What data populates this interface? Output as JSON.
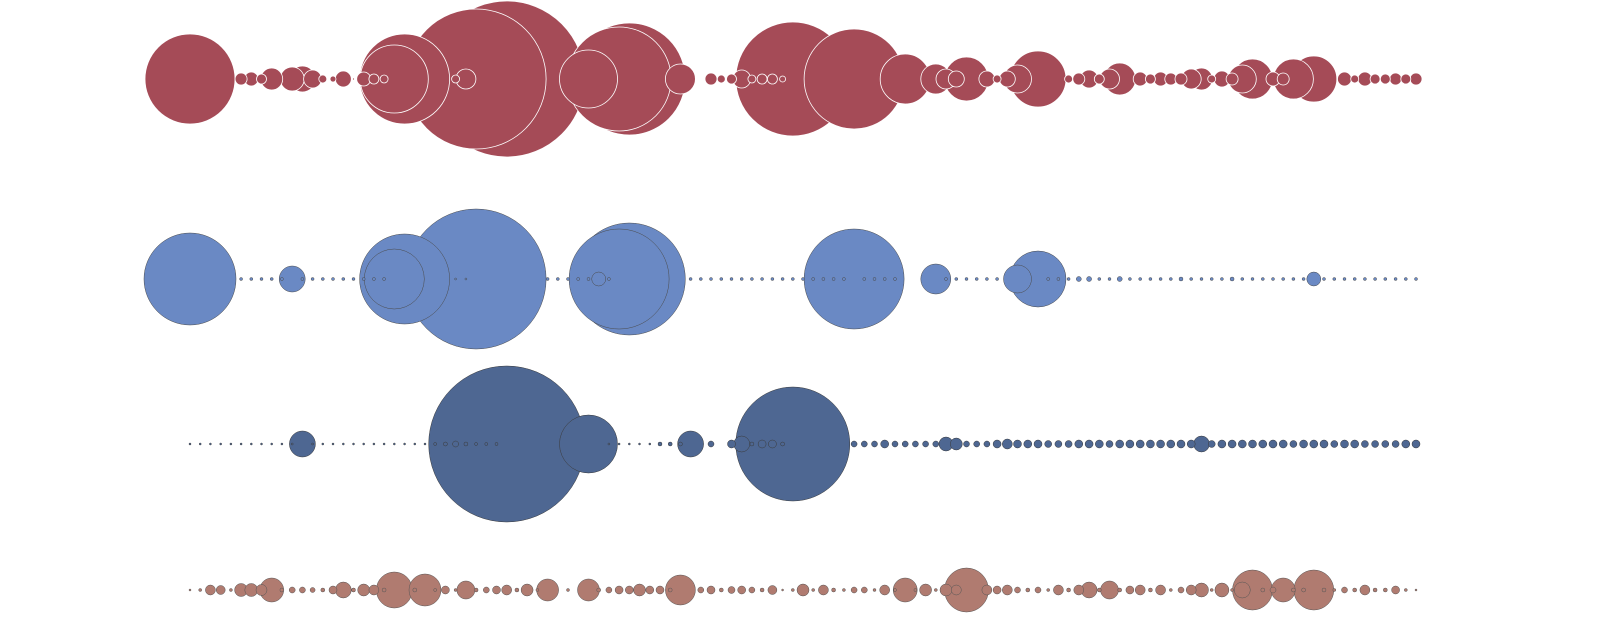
{
  "chart_data": {
    "type": "bubble",
    "title": "",
    "xlabel": "",
    "ylabel": "",
    "grid": false,
    "legend": "none",
    "x_positions": 121,
    "series": [
      {
        "color": "#a54b57",
        "stroke": "#ffffff",
        "sizes": [
          45,
          0,
          0,
          0,
          0,
          6,
          7,
          5,
          11,
          0,
          12,
          13,
          9,
          4,
          3,
          8,
          1,
          7,
          5,
          4,
          34,
          45,
          0,
          0,
          0,
          0,
          4,
          10,
          70,
          0,
          0,
          78,
          0,
          0,
          0,
          0,
          0,
          0,
          0,
          29,
          0,
          0,
          52,
          56,
          0,
          0,
          0,
          0,
          15,
          0,
          0,
          6,
          4,
          5,
          9,
          4,
          5,
          5,
          3,
          57,
          0,
          0,
          0,
          0,
          0,
          50,
          0,
          0,
          0,
          0,
          25,
          0,
          0,
          15,
          10,
          8,
          22,
          0,
          8,
          4,
          8,
          14,
          0,
          28,
          0,
          0,
          4,
          6,
          9,
          5,
          10,
          16,
          0,
          7,
          5,
          7,
          6,
          6,
          10,
          11,
          4,
          8,
          6,
          14,
          20,
          0,
          7,
          6,
          20,
          0,
          23,
          0,
          0,
          7,
          4,
          7,
          5,
          5,
          6,
          5,
          6
        ]
      },
      {
        "color": "#6a89c4",
        "stroke": "#4a4a4a",
        "sizes": [
          46,
          0,
          0,
          0,
          0,
          1.5,
          1.5,
          1.5,
          1.5,
          1.5,
          13,
          1.5,
          1.5,
          1.5,
          1.5,
          1.5,
          1.5,
          1.5,
          1.5,
          1.5,
          30,
          45,
          0,
          0,
          0,
          0,
          1,
          1,
          70,
          0,
          0,
          0,
          0,
          0,
          0,
          1.5,
          1.5,
          1.5,
          1.5,
          1.5,
          7,
          1.5,
          50,
          56,
          0,
          0,
          0,
          0,
          0,
          1.5,
          1.5,
          1.5,
          1.5,
          1.5,
          1.5,
          1.5,
          1.5,
          1.5,
          1.5,
          1.5,
          1.5,
          1.5,
          1.5,
          1.5,
          1.5,
          50,
          1.5,
          1.5,
          1.5,
          1.5,
          0,
          0,
          0,
          15,
          1.5,
          1.5,
          1.5,
          1.5,
          1.5,
          1.5,
          0,
          14,
          0,
          28,
          1.5,
          1.5,
          1.5,
          2.5,
          2.5,
          1.5,
          1.5,
          2.5,
          1.5,
          1.5,
          1.5,
          1.5,
          1.5,
          2,
          1.5,
          1.5,
          1.5,
          1.5,
          2,
          1.5,
          1.5,
          1.5,
          1.5,
          1.5,
          1.5,
          1.5,
          7,
          1.5,
          1.5,
          1.5,
          1.5,
          1.5,
          1.5,
          1.5,
          1.5,
          1.5,
          1.5
        ]
      },
      {
        "color": "#4e6792",
        "stroke": "#3a3a3a",
        "sizes": [
          1,
          1,
          1,
          1,
          1,
          1,
          1,
          1,
          1,
          1,
          1,
          13,
          1,
          1,
          1,
          1,
          1,
          1,
          1,
          1,
          1,
          1,
          1,
          1,
          1.5,
          2,
          3,
          2,
          1.5,
          1.5,
          1.5,
          78,
          0,
          0,
          0,
          0,
          0,
          0,
          0,
          29,
          0,
          1,
          1,
          1,
          1,
          1,
          2,
          2,
          2,
          13,
          0,
          3,
          0,
          4,
          8,
          2,
          4,
          4,
          2,
          57,
          0,
          0,
          0,
          0,
          0,
          3,
          3,
          3,
          4,
          3,
          3,
          3,
          3,
          3,
          7,
          6,
          3,
          3,
          3,
          4,
          5,
          4,
          4,
          4,
          3.5,
          3.5,
          3.5,
          4,
          4,
          4,
          3.5,
          4,
          4,
          4,
          4,
          4,
          4,
          4,
          4,
          8,
          3.5,
          4,
          4,
          4,
          4,
          4,
          4,
          4,
          3.5,
          4,
          4,
          4,
          3.5,
          4,
          4,
          3.5,
          3.5,
          3.5,
          3.5,
          4,
          4
        ]
      },
      {
        "color": "#b07b70",
        "stroke": "#555555",
        "sizes": [
          1,
          1.5,
          5,
          4.5,
          1.5,
          6.5,
          6.5,
          5.5,
          12,
          2,
          3,
          3,
          2.5,
          2,
          4,
          8,
          2,
          6,
          5,
          2,
          18,
          0,
          2,
          16,
          1.5,
          4,
          1.5,
          9,
          2,
          3,
          4,
          5,
          2,
          6,
          1.5,
          11,
          0,
          1.5,
          0,
          11,
          2,
          3,
          4,
          4,
          6,
          4,
          4,
          2,
          15,
          0,
          3,
          4,
          2,
          3.5,
          4,
          3,
          2,
          4.5,
          1,
          1.5,
          6,
          1.5,
          5,
          2,
          1.5,
          3,
          3,
          1.5,
          5,
          1.5,
          12,
          1.5,
          6,
          1.5,
          6,
          5,
          22,
          0,
          5,
          4,
          5,
          3,
          2,
          3,
          1.5,
          5,
          2,
          5,
          8,
          2,
          9,
          2,
          4,
          5,
          2,
          5,
          1.5,
          3,
          5,
          7,
          1.5,
          7,
          1.5,
          8,
          20,
          2,
          3,
          12,
          2,
          2,
          20,
          2,
          1.5,
          3,
          2,
          5,
          2,
          2,
          4,
          1.5,
          1
        ]
      }
    ]
  }
}
